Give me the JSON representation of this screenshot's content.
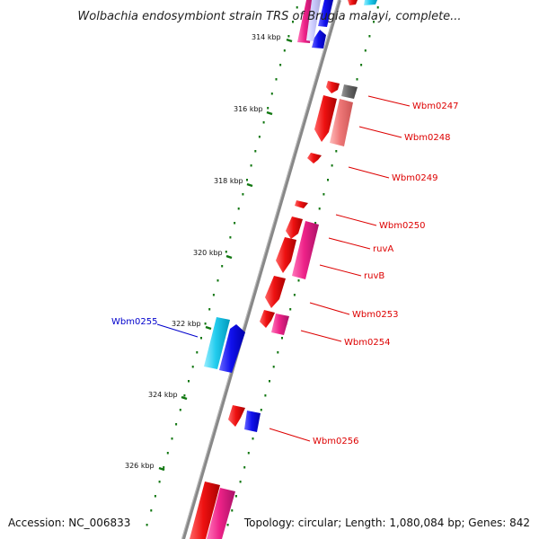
{
  "title": "Wolbachia endosymbiont strain TRS of Brugia malayi, complete...",
  "footer": {
    "accession": "Accession: NC_006833",
    "summary": "Topology: circular; Length: 1,080,084 bp; Genes: 842"
  },
  "ticks": [
    "314 kbp",
    "316 kbp",
    "318 kbp",
    "320 kbp",
    "322 kbp",
    "324 kbp",
    "326 kbp"
  ],
  "genes": [
    {
      "name": "Wbm0247",
      "color": "#dd0000"
    },
    {
      "name": "Wbm0248",
      "color": "#dd0000"
    },
    {
      "name": "Wbm0249",
      "color": "#dd0000"
    },
    {
      "name": "Wbm0250",
      "color": "#dd0000"
    },
    {
      "name": "ruvA",
      "color": "#dd0000"
    },
    {
      "name": "ruvB",
      "color": "#dd0000"
    },
    {
      "name": "Wbm0253",
      "color": "#dd0000"
    },
    {
      "name": "Wbm0254",
      "color": "#dd0000"
    },
    {
      "name": "Wbm0255",
      "color": "#0000cc"
    },
    {
      "name": "Wbm0256",
      "color": "#dd0000"
    }
  ],
  "colors": {
    "red": "#ee1111",
    "pink": "#ee2288",
    "salmon": "#ee7777",
    "gray": "#666666",
    "blue": "#1111ee",
    "cyan": "#22ccee",
    "lavender": "#ccccff",
    "backbone": "#888888",
    "tick": "#117711"
  }
}
